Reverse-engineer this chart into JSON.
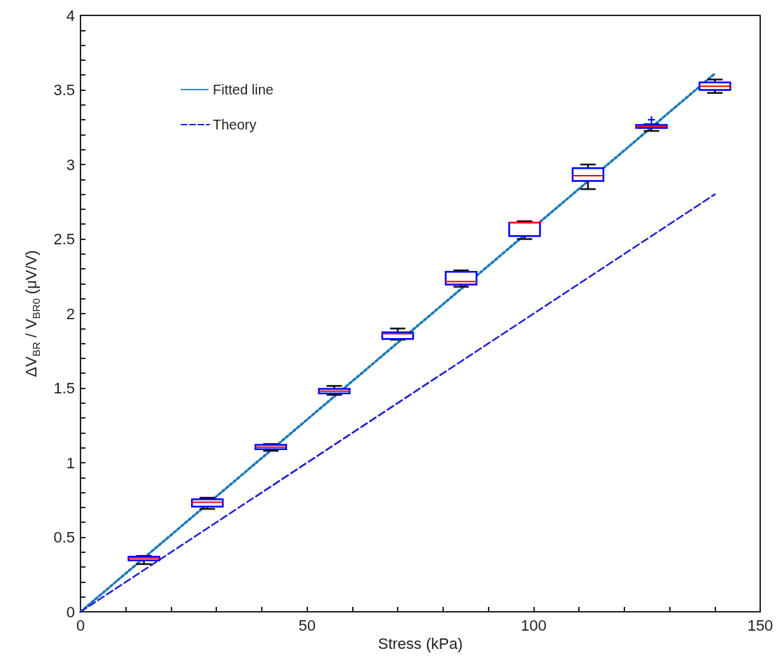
{
  "chart_data": {
    "type": "box",
    "xlabel": "Stress (kPa)",
    "ylabel": "ΔV$_{BR}$ / V$_{BR0}$ (μV/V)",
    "xlim": [
      0,
      150
    ],
    "xticks": [
      0,
      {
        "value": 10,
        "label": null
      },
      {
        "value": 20,
        "label": null
      },
      {
        "value": 30,
        "label": null
      },
      {
        "value": 40,
        "label": null
      },
      50,
      {
        "value": 60,
        "label": null
      },
      {
        "value": 70,
        "label": null
      },
      {
        "value": 80,
        "label": null
      },
      {
        "value": 90,
        "label": null
      },
      100,
      {
        "value": 110,
        "label": null
      },
      {
        "value": 120,
        "label": null
      },
      {
        "value": 130,
        "label": null
      },
      {
        "value": 140,
        "label": null
      },
      150
    ],
    "ylim": [
      0,
      4
    ],
    "yticks": [
      0,
      {
        "value": 0.1,
        "label": null
      },
      {
        "value": 0.2,
        "label": null
      },
      {
        "value": 0.3,
        "label": null
      },
      {
        "value": 0.4,
        "label": null
      },
      0.5,
      {
        "value": 0.6,
        "label": null
      },
      {
        "value": 0.7,
        "label": null
      },
      {
        "value": 0.8,
        "label": null
      },
      {
        "value": 0.9,
        "label": null
      },
      1,
      {
        "value": 1.1,
        "label": null
      },
      {
        "value": 1.2,
        "label": null
      },
      {
        "value": 1.3,
        "label": null
      },
      {
        "value": 1.4,
        "label": null
      },
      1.5,
      {
        "value": 1.6,
        "label": null
      },
      {
        "value": 1.7,
        "label": null
      },
      {
        "value": 1.8,
        "label": null
      },
      {
        "value": 1.9,
        "label": null
      },
      2,
      {
        "value": 2.1,
        "label": null
      },
      {
        "value": 2.2,
        "label": null
      },
      {
        "value": 2.3,
        "label": null
      },
      {
        "value": 2.4,
        "label": null
      },
      2.5,
      {
        "value": 2.6,
        "label": null
      },
      {
        "value": 2.7,
        "label": null
      },
      {
        "value": 2.8,
        "label": null
      },
      {
        "value": 2.9,
        "label": null
      },
      3,
      {
        "value": 3.1,
        "label": null
      },
      {
        "value": 3.2,
        "label": null
      },
      {
        "value": 3.3,
        "label": null
      },
      {
        "value": 3.4,
        "label": null
      },
      3.5,
      {
        "value": 3.6,
        "label": null
      },
      {
        "value": 3.7,
        "label": null
      },
      {
        "value": 3.8,
        "label": null
      },
      {
        "value": 3.9,
        "label": null
      },
      4
    ],
    "legend": "top left",
    "series": [
      {
        "color": "#0000ff",
        "x": [
          14,
          28,
          42,
          56,
          70,
          84,
          98,
          112,
          126,
          140
        ],
        "boxes": [
          {
            "low": 0.32,
            "q1": 0.345,
            "median": 0.36,
            "q3": 0.37,
            "high": 0.375
          },
          {
            "low": 0.69,
            "q1": 0.705,
            "median": 0.735,
            "q3": 0.755,
            "high": 0.765
          },
          {
            "low": 1.08,
            "q1": 1.09,
            "median": 1.105,
            "q3": 1.12,
            "high": 1.125
          },
          {
            "low": 1.455,
            "q1": 1.465,
            "median": 1.48,
            "q3": 1.495,
            "high": 1.515
          },
          {
            "low": 1.825,
            "q1": 1.83,
            "median": 1.865,
            "q3": 1.875,
            "high": 1.9
          },
          {
            "low": 2.18,
            "q1": 2.195,
            "median": 2.215,
            "q3": 2.28,
            "high": 2.29
          },
          {
            "low": 2.5,
            "q1": 2.52,
            "median": 2.61,
            "q3": 2.61,
            "high": 2.62
          },
          {
            "low": 2.835,
            "q1": 2.89,
            "median": 2.925,
            "q3": 2.975,
            "high": 3.0
          },
          {
            "low": 3.225,
            "q1": 3.245,
            "median": 3.255,
            "q3": 3.265,
            "high": 3.27,
            "outliers": [
              3.3
            ]
          },
          {
            "low": 3.48,
            "q1": 3.5,
            "median": 3.525,
            "q3": 3.55,
            "high": 3.57
          }
        ]
      },
      {
        "type": "line",
        "name": "Fitted line",
        "color": "#1a7ab8",
        "line_style": "dotted",
        "x": [
          0,
          140
        ],
        "values": [
          0,
          3.61
        ]
      },
      {
        "type": "line",
        "name": "Theory",
        "color": "#1f1fd6",
        "line_style": "dashed",
        "x": [
          0,
          140
        ],
        "values": [
          0,
          2.8
        ]
      }
    ]
  }
}
